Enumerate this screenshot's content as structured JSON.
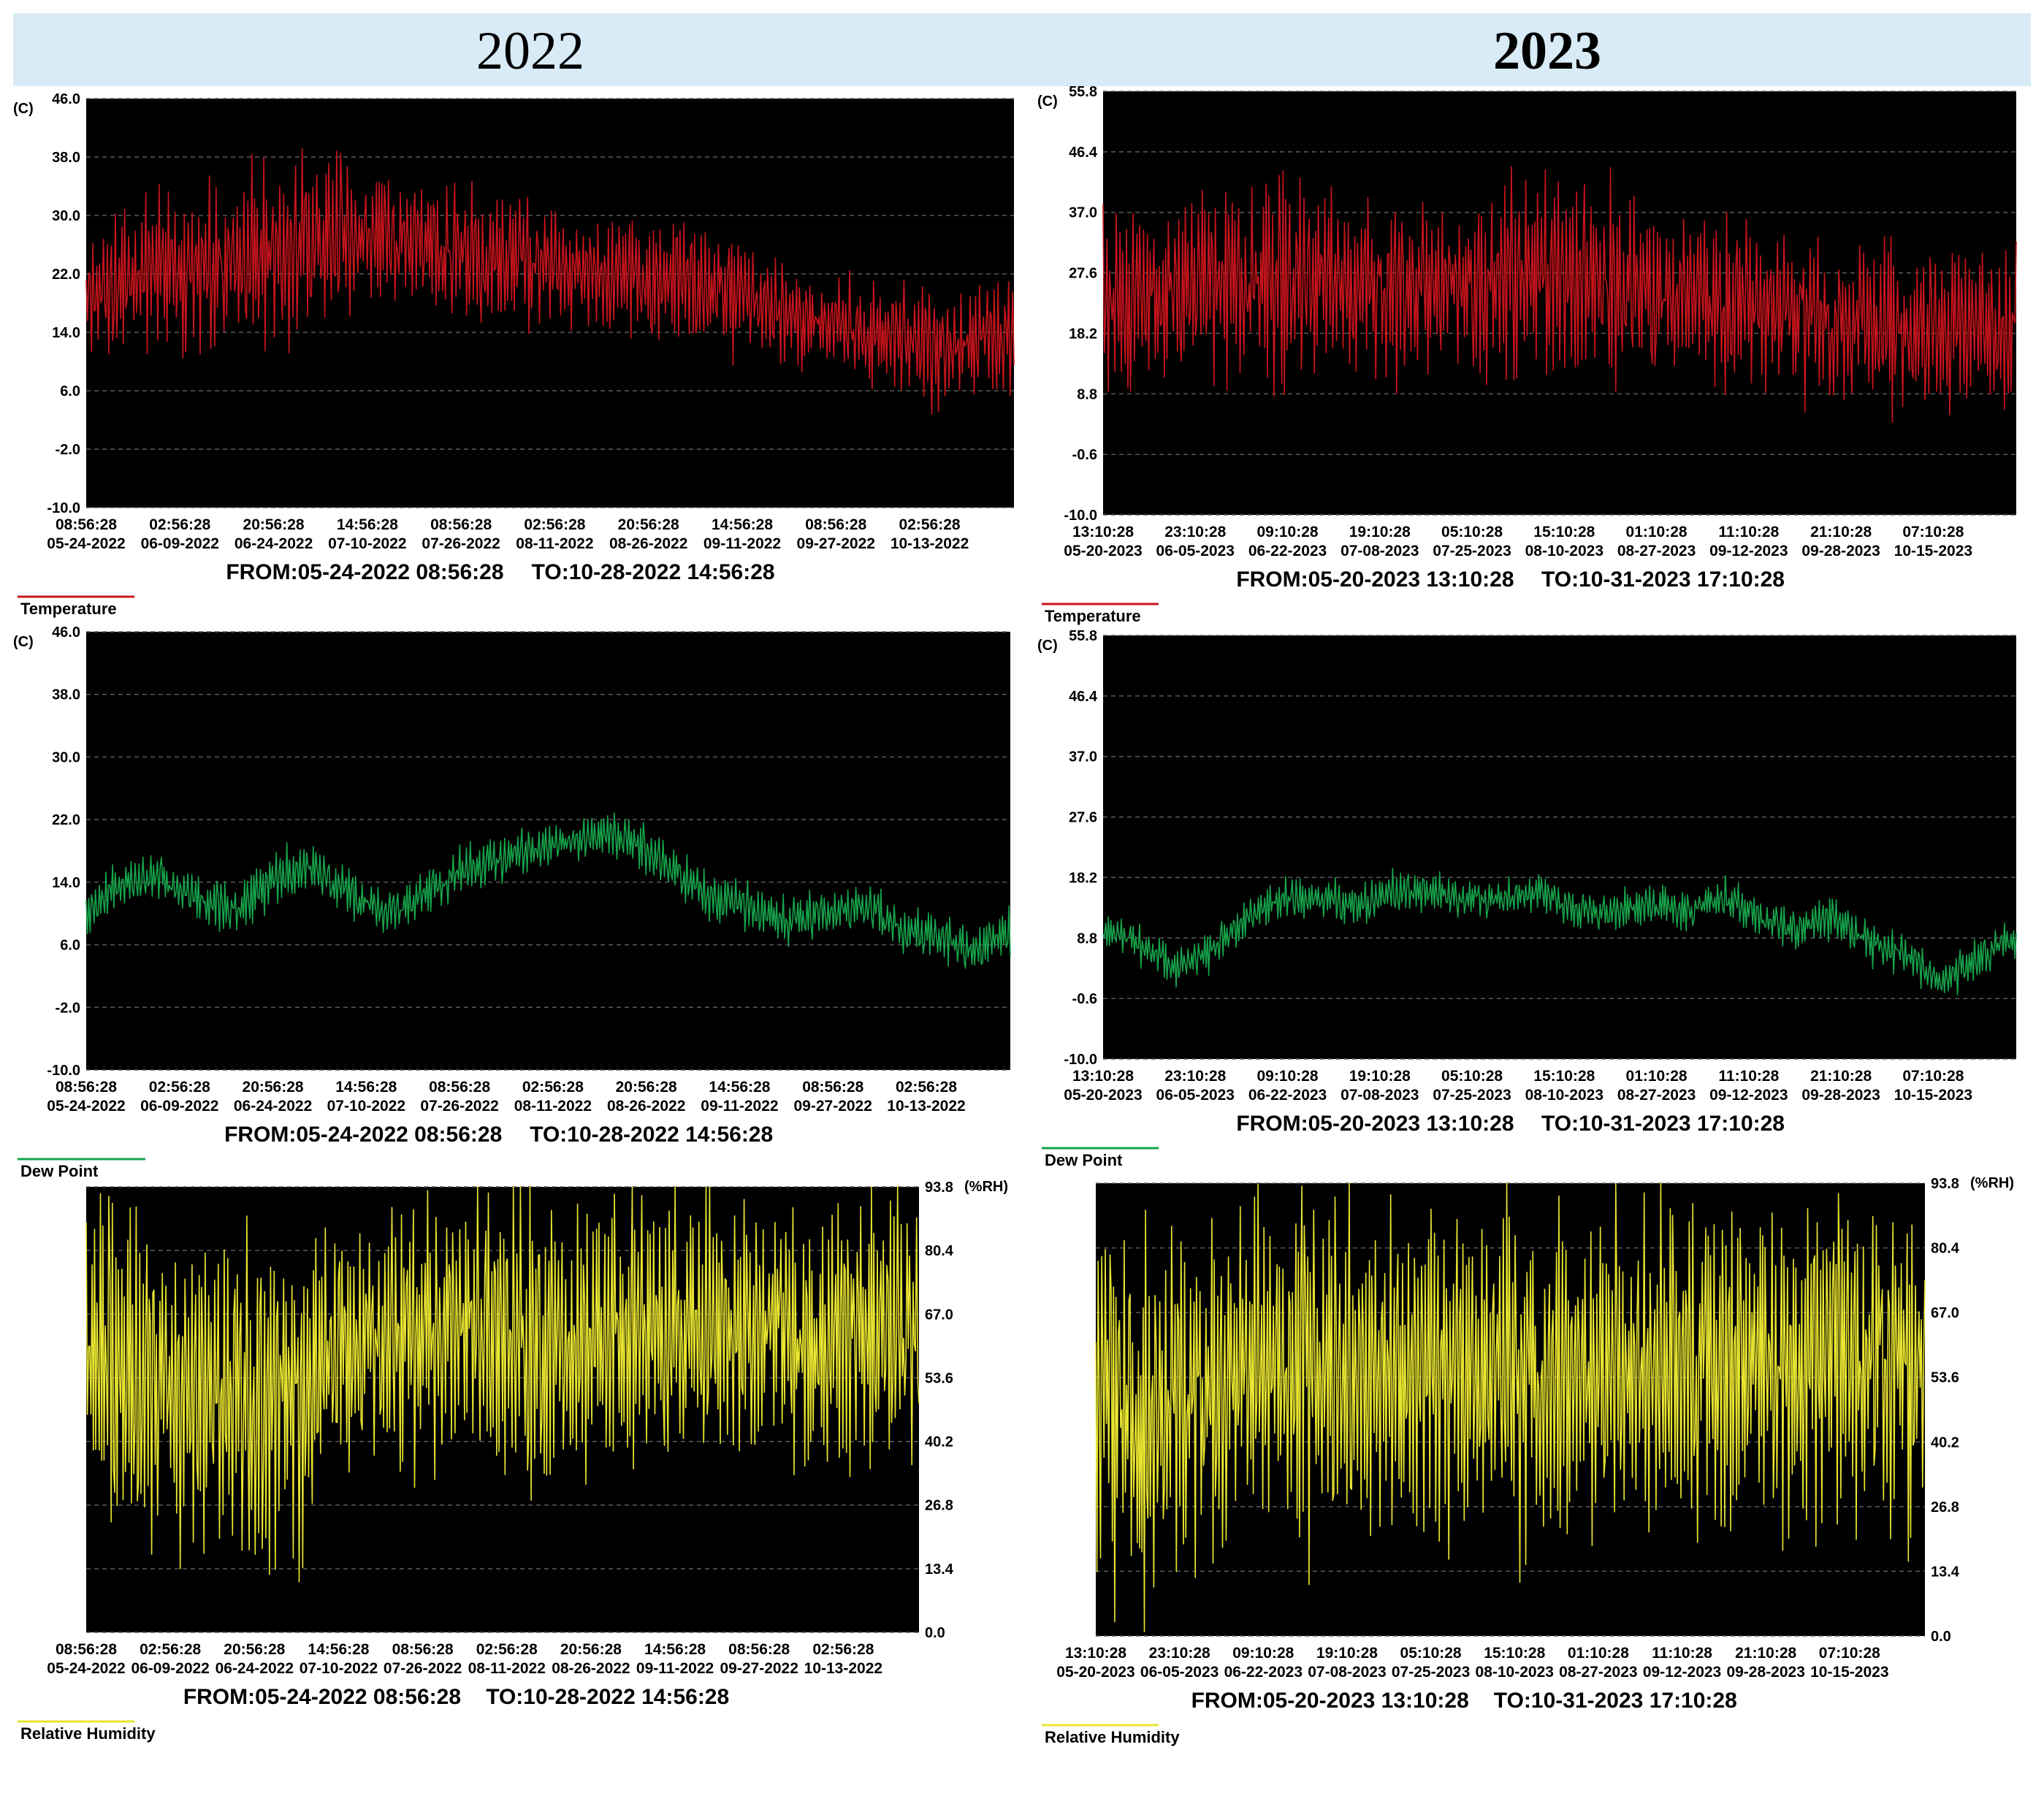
{
  "header": {
    "year_left": "2022",
    "year_right": "2023"
  },
  "chart_data": [
    {
      "id": "temp-2022",
      "type": "line",
      "legend": "Temperature",
      "unit": "(C)",
      "color": "#c8141c",
      "yticks": [
        46.0,
        38.0,
        30.0,
        22.0,
        14.0,
        6.0,
        -2.0,
        -10.0
      ],
      "ylim": [
        -10.0,
        46.0
      ],
      "yaxis_side": "left",
      "xticks_time": [
        "08:56:28",
        "02:56:28",
        "20:56:28",
        "14:56:28",
        "08:56:28",
        "02:56:28",
        "20:56:28",
        "14:56:28",
        "08:56:28",
        "02:56:28"
      ],
      "xticks_date": [
        "05-24-2022",
        "06-09-2022",
        "06-24-2022",
        "07-10-2022",
        "07-26-2022",
        "08-11-2022",
        "08-26-2022",
        "09-11-2022",
        "09-27-2022",
        "10-13-2022"
      ],
      "from": "FROM:05-24-2022 08:56:28",
      "to": "TO:10-28-2022 14:56:28",
      "baseline": [
        20,
        21,
        22,
        23,
        24,
        25,
        26,
        27,
        27,
        26,
        25,
        24,
        24,
        23,
        22,
        22,
        21,
        20,
        18,
        16,
        15,
        14,
        13,
        12,
        13,
        14
      ],
      "amplitude": [
        9,
        9,
        10,
        10,
        11,
        12,
        12,
        11,
        10,
        10,
        9,
        9,
        9,
        8,
        8,
        8,
        9,
        8,
        7,
        7,
        7,
        7,
        7,
        8,
        8,
        8
      ]
    },
    {
      "id": "temp-2023",
      "type": "line",
      "legend": "Temperature",
      "unit": "(C)",
      "color": "#c8141c",
      "yticks": [
        55.8,
        46.4,
        37.0,
        27.6,
        18.2,
        8.8,
        -0.6,
        -10.0
      ],
      "ylim": [
        -10.0,
        55.8
      ],
      "yaxis_side": "left",
      "xticks_time": [
        "13:10:28",
        "23:10:28",
        "09:10:28",
        "19:10:28",
        "05:10:28",
        "15:10:28",
        "01:10:28",
        "11:10:28",
        "21:10:28",
        "07:10:28"
      ],
      "xticks_date": [
        "05-20-2023",
        "06-05-2023",
        "06-22-2023",
        "07-08-2023",
        "07-25-2023",
        "08-10-2023",
        "08-27-2023",
        "09-12-2023",
        "09-28-2023",
        "10-15-2023"
      ],
      "from": "FROM:05-20-2023 13:10:28",
      "to": "TO:10-31-2023 17:10:28",
      "baseline": [
        23,
        24,
        25,
        26,
        27,
        27,
        26,
        25,
        25,
        25,
        25,
        26,
        27,
        27,
        26,
        25,
        24,
        23,
        22,
        22,
        21,
        20,
        19,
        18,
        18,
        19
      ],
      "amplitude": [
        14,
        14,
        15,
        15,
        16,
        16,
        14,
        13,
        13,
        13,
        13,
        14,
        15,
        15,
        14,
        13,
        13,
        12,
        12,
        12,
        12,
        12,
        12,
        12,
        12,
        12
      ]
    },
    {
      "id": "dew-2022",
      "type": "line",
      "legend": "Dew Point",
      "unit": "(C)",
      "color": "#16a34a",
      "yticks": [
        46.0,
        38.0,
        30.0,
        22.0,
        14.0,
        6.0,
        -2.0,
        -10.0
      ],
      "ylim": [
        -10.0,
        46.0
      ],
      "yaxis_side": "left",
      "xticks_time": [
        "08:56:28",
        "02:56:28",
        "20:56:28",
        "14:56:28",
        "08:56:28",
        "02:56:28",
        "20:56:28",
        "14:56:28",
        "08:56:28",
        "02:56:28"
      ],
      "xticks_date": [
        "05-24-2022",
        "06-09-2022",
        "06-24-2022",
        "07-10-2022",
        "07-26-2022",
        "08-11-2022",
        "08-26-2022",
        "09-11-2022",
        "09-27-2022",
        "10-13-2022"
      ],
      "from": "FROM:05-24-2022 08:56:28",
      "to": "TO:10-28-2022 14:56:28",
      "baseline": [
        10,
        14,
        15,
        12,
        10,
        14,
        16,
        13,
        10,
        12,
        15,
        17,
        18,
        19,
        20,
        19,
        15,
        12,
        11,
        9,
        10,
        11,
        8,
        7,
        5,
        8
      ],
      "amplitude": [
        3,
        3,
        3,
        3,
        3,
        4,
        3,
        3,
        3,
        3,
        3,
        3,
        3,
        2,
        3,
        3,
        3,
        3,
        3,
        3,
        3,
        3,
        3,
        3,
        3,
        3
      ]
    },
    {
      "id": "dew-2023",
      "type": "line",
      "legend": "Dew Point",
      "unit": "(C)",
      "color": "#16a34a",
      "yticks": [
        55.8,
        46.4,
        37.0,
        27.6,
        18.2,
        8.8,
        -0.6,
        -10.0
      ],
      "ylim": [
        -10.0,
        55.8
      ],
      "yaxis_side": "left",
      "xticks_time": [
        "13:10:28",
        "23:10:28",
        "09:10:28",
        "19:10:28",
        "05:10:28",
        "15:10:28",
        "01:10:28",
        "11:10:28",
        "21:10:28",
        "07:10:28"
      ],
      "xticks_date": [
        "05-20-2023",
        "06-05-2023",
        "06-22-2023",
        "07-08-2023",
        "07-25-2023",
        "08-10-2023",
        "08-27-2023",
        "09-12-2023",
        "09-28-2023",
        "10-15-2023"
      ],
      "from": "FROM:05-20-2023 13:10:28",
      "to": "TO:10-31-2023 17:10:28",
      "baseline": [
        10,
        8,
        4,
        7,
        12,
        15,
        15,
        14,
        16,
        16,
        15,
        15,
        16,
        13,
        13,
        14,
        13,
        15,
        12,
        10,
        12,
        8,
        6,
        2,
        6,
        9
      ],
      "amplitude": [
        3,
        3,
        3,
        3,
        3,
        3,
        3,
        3,
        3,
        3,
        3,
        3,
        3,
        3,
        3,
        3,
        3,
        3,
        3,
        3,
        3,
        3,
        3,
        3,
        3,
        3
      ]
    },
    {
      "id": "rh-2022",
      "type": "line",
      "legend": "Relative Humidity",
      "unit": "(%RH)",
      "color": "#e9e531",
      "yticks": [
        93.8,
        80.4,
        67.0,
        53.6,
        40.2,
        26.8,
        13.4,
        0.0
      ],
      "ylim": [
        0.0,
        93.8
      ],
      "yaxis_side": "right",
      "xticks_time": [
        "08:56:28",
        "02:56:28",
        "20:56:28",
        "14:56:28",
        "08:56:28",
        "02:56:28",
        "20:56:28",
        "14:56:28",
        "08:56:28",
        "02:56:28"
      ],
      "xticks_date": [
        "05-24-2022",
        "06-09-2022",
        "06-24-2022",
        "07-10-2022",
        "07-26-2022",
        "08-11-2022",
        "08-26-2022",
        "09-11-2022",
        "09-27-2022",
        "10-13-2022"
      ],
      "from": "FROM:05-24-2022 08:56:28",
      "to": "TO:10-28-2022 14:56:28",
      "baseline": [
        58,
        55,
        52,
        50,
        52,
        50,
        48,
        52,
        60,
        62,
        62,
        63,
        62,
        60,
        60,
        62,
        63,
        62,
        62,
        63,
        64,
        63,
        62,
        63,
        64,
        65
      ],
      "amplitude": [
        32,
        33,
        34,
        35,
        33,
        34,
        34,
        30,
        28,
        28,
        28,
        28,
        28,
        30,
        30,
        28,
        28,
        28,
        28,
        28,
        27,
        28,
        28,
        28,
        27,
        27
      ]
    },
    {
      "id": "rh-2023",
      "type": "line",
      "legend": "Relative Humidity",
      "unit": "(%RH)",
      "color": "#e9e531",
      "yticks": [
        93.8,
        80.4,
        67.0,
        53.6,
        40.2,
        26.8,
        13.4,
        0.0
      ],
      "ylim": [
        0.0,
        93.8
      ],
      "yaxis_side": "right",
      "xticks_time": [
        "13:10:28",
        "23:10:28",
        "09:10:28",
        "19:10:28",
        "05:10:28",
        "15:10:28",
        "01:10:28",
        "11:10:28",
        "21:10:28",
        "07:10:28"
      ],
      "xticks_date": [
        "05-20-2023",
        "06-05-2023",
        "06-22-2023",
        "07-08-2023",
        "07-25-2023",
        "08-10-2023",
        "08-27-2023",
        "09-12-2023",
        "09-28-2023",
        "10-15-2023"
      ],
      "from": "FROM:05-20-2023 13:10:28",
      "to": "TO:10-31-2023 17:10:28",
      "baseline": [
        50,
        48,
        45,
        48,
        55,
        55,
        55,
        55,
        55,
        55,
        55,
        55,
        55,
        52,
        55,
        55,
        55,
        55,
        55,
        55,
        55,
        55,
        55,
        55,
        55,
        55
      ],
      "amplitude": [
        38,
        38,
        38,
        36,
        34,
        34,
        34,
        34,
        34,
        34,
        34,
        34,
        34,
        36,
        34,
        34,
        34,
        34,
        34,
        34,
        34,
        34,
        34,
        34,
        34,
        34
      ]
    }
  ]
}
